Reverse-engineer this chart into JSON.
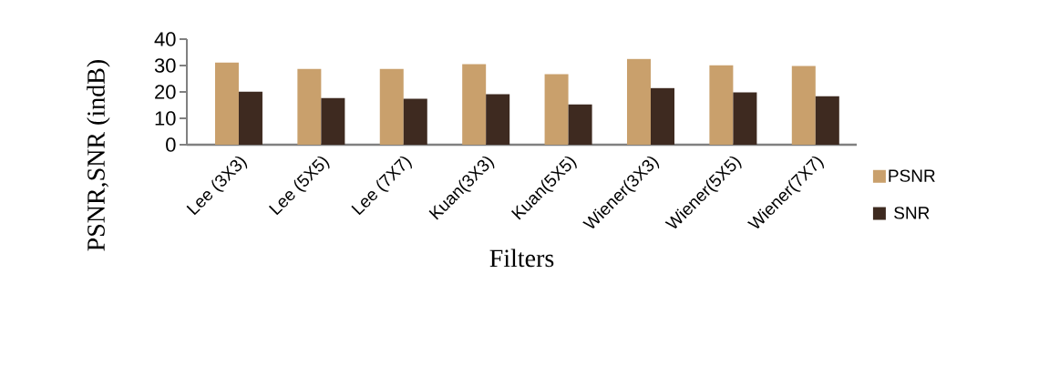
{
  "chart_data": {
    "type": "bar",
    "xlabel": "Filters",
    "ylabel": "PSNR,SNR (indB)",
    "categories": [
      "Lee (3X3)",
      "Lee (5X5)",
      "Lee (7X7)",
      "Kuan(3X3)",
      "Kuan(5X5)",
      "Wiener(3X3)",
      "Wiener(5X5)",
      "Wiener(7X7)"
    ],
    "series": [
      {
        "name": "PSNR",
        "color": "#c9a06c",
        "values": [
          31.1,
          28.7,
          28.7,
          30.5,
          26.7,
          32.5,
          30.1,
          29.8
        ]
      },
      {
        "name": "SNR",
        "color": "#3e2a20",
        "values": [
          20.1,
          17.7,
          17.4,
          19.1,
          15.3,
          21.5,
          19.8,
          18.4
        ]
      }
    ],
    "ylim": [
      0,
      40
    ],
    "yticks": [
      0,
      10,
      20,
      30,
      40
    ],
    "legend": "right"
  }
}
